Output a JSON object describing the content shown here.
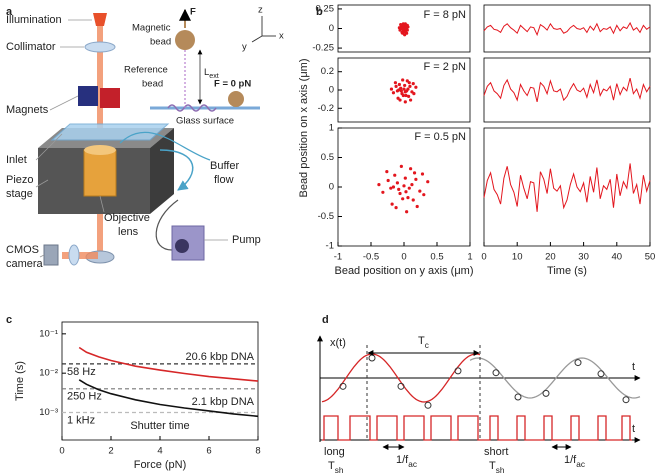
{
  "panel_labels": [
    "a",
    "b",
    "c",
    "d"
  ],
  "schematic": {
    "labels": [
      "Illumination",
      "Collimator",
      "Magnets",
      "Inlet",
      "Piezo",
      "stage",
      "CMOS",
      "camera",
      "Objective",
      "lens",
      "Buffer",
      "flow",
      "Pump"
    ],
    "inset_labels": [
      "Magnetic",
      "bead",
      "Reference",
      "bead",
      "F",
      "F = 0 pN",
      "Glass surface",
      "z",
      "y",
      "x"
    ],
    "length_label": {
      "text": "L",
      "sub": "ext"
    }
  },
  "panel_b": {
    "ylabel": "Bead position on x axis (μm)"
  },
  "chart_data": [
    {
      "type": "scatter",
      "annotation": "F = 8 pN",
      "color": "#e3161e",
      "x": [
        0.01,
        -0.04,
        0.03,
        -0.01,
        0.05,
        -0.03,
        0,
        -0.01,
        0.02,
        -0.06,
        0.04,
        -0.02,
        0.01,
        0,
        0.06,
        -0.02,
        0.01,
        -0.05,
        0.03,
        -0.01,
        0.02,
        -0.04,
        0.04,
        0,
        -0.02,
        0.02,
        -0.07,
        0.05,
        -0.03,
        0.01
      ],
      "y": [
        -0.03,
        0.02,
        0.04,
        -0.01,
        -0.02,
        -0.05,
        0.03,
        0.06,
        0.01,
        -0.02,
        -0.06,
        0.04,
        0,
        -0.04,
        0.02,
        0.01,
        -0.08,
        0.05,
        0.02,
        -0.02,
        0.06,
        0,
        -0.01,
        0,
        -0.06,
        -0.04,
        0.01,
        0.04,
        0,
        -0.01
      ],
      "xlim": [
        -1,
        1
      ],
      "ylim": [
        -0.3,
        0.3
      ],
      "yticks": [
        -0.25,
        0,
        0.25
      ]
    },
    {
      "type": "scatter",
      "annotation": "F = 2 pN",
      "color": "#e3161e",
      "x": [
        0.03,
        -0.12,
        0.08,
        -0.04,
        0.15,
        -0.09,
        0.01,
        -0.02,
        0.06,
        -0.16,
        0.1,
        -0.07,
        0.04,
        -0.01,
        0.18,
        -0.05,
        0.02,
        -0.13,
        0.09,
        -0.03,
        0.05,
        -0.1,
        0.12,
        0,
        -0.06,
        0.07,
        -0.19,
        0.14,
        -0.08,
        0.02
      ],
      "y": [
        -0.06,
        0.04,
        0.08,
        -0.01,
        -0.04,
        -0.09,
        0.05,
        0.11,
        0.01,
        -0.03,
        -0.11,
        0.06,
        -0.01,
        -0.06,
        0.03,
        0.02,
        -0.13,
        0.08,
        0.04,
        -0.04,
        0.1,
        -0.01,
        -0.02,
        0.01,
        -0.11,
        -0.07,
        0.01,
        0.07,
        0,
        -0.02
      ],
      "xlim": [
        -1,
        1
      ],
      "ylim": [
        -0.35,
        0.35
      ],
      "yticks": [
        -0.2,
        0,
        0.2
      ]
    },
    {
      "type": "scatter",
      "annotation": "F = 0.5 pN",
      "color": "#e3161e",
      "x": [
        0.06,
        -0.24,
        0.16,
        -0.08,
        0.3,
        -0.18,
        0.02,
        -0.04,
        0.12,
        -0.32,
        0.2,
        -0.14,
        0.08,
        -0.02,
        0.36,
        -0.1,
        0.04,
        -0.26,
        0.18,
        -0.06,
        0.1,
        -0.2,
        0.24,
        0,
        -0.12,
        0.14,
        -0.38,
        0.28,
        -0.16,
        0.03
      ],
      "y": [
        -0.18,
        0.11,
        0.24,
        -0.04,
        -0.13,
        -0.29,
        0.15,
        0.35,
        0.04,
        -0.09,
        -0.33,
        0.2,
        -0.02,
        -0.2,
        0.09,
        0.07,
        -0.42,
        0.26,
        0.13,
        -0.11,
        0.31,
        -0.02,
        -0.07,
        0.02,
        -0.35,
        -0.22,
        0.04,
        0.22,
        0,
        -0.08
      ],
      "xlim": [
        -1,
        1
      ],
      "ylim": [
        -1,
        1
      ],
      "xticks": [
        -1,
        -0.5,
        0,
        0.5,
        1
      ],
      "yticks": [
        -1,
        -0.5,
        0,
        0.5,
        1
      ],
      "xlabel": "Bead position on y axis (μm)"
    },
    {
      "type": "line",
      "color": "#e3161e",
      "x": [
        0,
        1,
        2,
        3,
        4,
        5,
        6,
        7,
        8,
        9,
        10,
        11,
        12,
        13,
        14,
        15,
        16,
        17,
        18,
        19,
        20,
        21,
        22,
        23,
        24,
        25,
        26,
        27,
        28,
        29,
        30,
        31,
        32,
        33,
        34,
        35,
        36,
        37,
        38,
        39,
        40,
        41,
        42,
        43,
        44,
        45,
        46,
        47,
        48,
        49,
        50
      ],
      "values": [
        -0.03,
        0.02,
        0.04,
        -0.01,
        -0.02,
        -0.05,
        0.03,
        0.06,
        0.01,
        -0.02,
        -0.06,
        0.04,
        0,
        -0.04,
        0.02,
        0.01,
        -0.08,
        0.05,
        0.02,
        -0.02,
        0.06,
        0,
        -0.01,
        0,
        -0.06,
        -0.04,
        0.01,
        0.04,
        0,
        -0.01,
        0.01,
        -0.05,
        0.03,
        -0.02,
        0.06,
        -0.04,
        0,
        -0.01,
        0.02,
        -0.06,
        0.04,
        -0.03,
        0.02,
        0,
        0.07,
        -0.02,
        0.01,
        -0.05,
        0.04,
        -0.01,
        0.02
      ],
      "xlim": [
        0,
        50
      ],
      "ylim": [
        -0.3,
        0.3
      ]
    },
    {
      "type": "line",
      "color": "#e3161e",
      "x": [
        0,
        1,
        2,
        3,
        4,
        5,
        6,
        7,
        8,
        9,
        10,
        11,
        12,
        13,
        14,
        15,
        16,
        17,
        18,
        19,
        20,
        21,
        22,
        23,
        24,
        25,
        26,
        27,
        28,
        29,
        30,
        31,
        32,
        33,
        34,
        35,
        36,
        37,
        38,
        39,
        40,
        41,
        42,
        43,
        44,
        45,
        46,
        47,
        48,
        49,
        50
      ],
      "values": [
        -0.06,
        0.04,
        0.08,
        -0.01,
        -0.04,
        -0.09,
        0.05,
        0.11,
        0.01,
        -0.03,
        -0.11,
        0.06,
        -0.01,
        -0.06,
        0.03,
        0.02,
        -0.13,
        0.08,
        0.04,
        -0.04,
        0.1,
        -0.01,
        -0.02,
        0.01,
        -0.11,
        -0.07,
        0.01,
        0.07,
        0,
        -0.02,
        0.02,
        -0.08,
        0.06,
        -0.03,
        0.11,
        -0.06,
        0.01,
        -0.01,
        0.04,
        -0.11,
        0.07,
        -0.05,
        0.03,
        -0.01,
        0.13,
        -0.04,
        0.01,
        -0.09,
        0.06,
        -0.02,
        0.04
      ],
      "xlim": [
        0,
        50
      ],
      "ylim": [
        -0.35,
        0.35
      ]
    },
    {
      "type": "line",
      "color": "#e3161e",
      "x": [
        0,
        1,
        2,
        3,
        4,
        5,
        6,
        7,
        8,
        9,
        10,
        11,
        12,
        13,
        14,
        15,
        16,
        17,
        18,
        19,
        20,
        21,
        22,
        23,
        24,
        25,
        26,
        27,
        28,
        29,
        30,
        31,
        32,
        33,
        34,
        35,
        36,
        37,
        38,
        39,
        40,
        41,
        42,
        43,
        44,
        45,
        46,
        47,
        48,
        49,
        50
      ],
      "values": [
        -0.18,
        0.11,
        0.24,
        -0.04,
        -0.13,
        -0.29,
        0.15,
        0.35,
        0.04,
        -0.09,
        -0.33,
        0.2,
        -0.02,
        -0.2,
        0.09,
        0.07,
        -0.42,
        0.26,
        0.13,
        -0.11,
        0.31,
        -0.02,
        -0.07,
        0.02,
        -0.35,
        -0.22,
        0.04,
        0.22,
        0,
        -0.08,
        0.07,
        -0.26,
        0.18,
        -0.09,
        0.33,
        -0.2,
        0.02,
        -0.04,
        0.13,
        -0.35,
        0.22,
        -0.15,
        0.09,
        -0.02,
        0.4,
        -0.11,
        0.04,
        -0.29,
        0.2,
        -0.07,
        0.11
      ],
      "xlim": [
        0,
        50
      ],
      "ylim": [
        -1,
        1
      ],
      "xticks": [
        0,
        10,
        20,
        30,
        40,
        50
      ],
      "xlabel": "Time (s)"
    },
    {
      "type": "line",
      "log_y": true,
      "x": [
        0.7,
        1,
        1.5,
        2,
        3,
        4,
        5,
        6,
        7,
        8
      ],
      "series": [
        {
          "name": "20.6 kbp DNA",
          "color": "#d62728",
          "values": [
            0.045,
            0.034,
            0.026,
            0.021,
            0.015,
            0.012,
            0.0098,
            0.0082,
            0.0072,
            0.0063
          ]
        },
        {
          "name": "2.1 kbp DNA",
          "color": "#111111",
          "values": [
            0.0068,
            0.0052,
            0.0038,
            0.003,
            0.0021,
            0.0016,
            0.0013,
            0.0011,
            0.00092,
            0.0008
          ]
        }
      ],
      "reference_lines": [
        {
          "value": 0.0172,
          "label": "58 Hz",
          "color": "#333333"
        },
        {
          "value": 0.004,
          "label": "250 Hz",
          "color": "#777777"
        },
        {
          "value": 0.001,
          "label": "1 kHz",
          "color": "#bbbbbb"
        }
      ],
      "annotation": "Shutter time",
      "xlim": [
        0,
        8
      ],
      "ylim": [
        0.0002,
        0.2
      ],
      "xticks": [
        0,
        2,
        4,
        6,
        8
      ],
      "yticks": [
        {
          "value": 0.001,
          "label": "10⁻³"
        },
        {
          "value": 0.01,
          "label": "10⁻²"
        },
        {
          "value": 0.1,
          "label": "10⁻¹"
        }
      ],
      "xlabel": "Force (pN)",
      "ylabel": "Time (s)"
    }
  ],
  "timing": {
    "ylabel": "x(t)",
    "period": {
      "text": "T",
      "sub": "c"
    },
    "axis_labels": [
      "t",
      "t"
    ],
    "long": "long",
    "short": "short",
    "shutter": [
      {
        "text": "T",
        "sub": "sh"
      },
      {
        "text": "T",
        "sub": "sh"
      }
    ],
    "sampling": [
      {
        "text": "1/f",
        "sub": "ac"
      },
      {
        "text": "1/f",
        "sub": "ac"
      }
    ]
  }
}
